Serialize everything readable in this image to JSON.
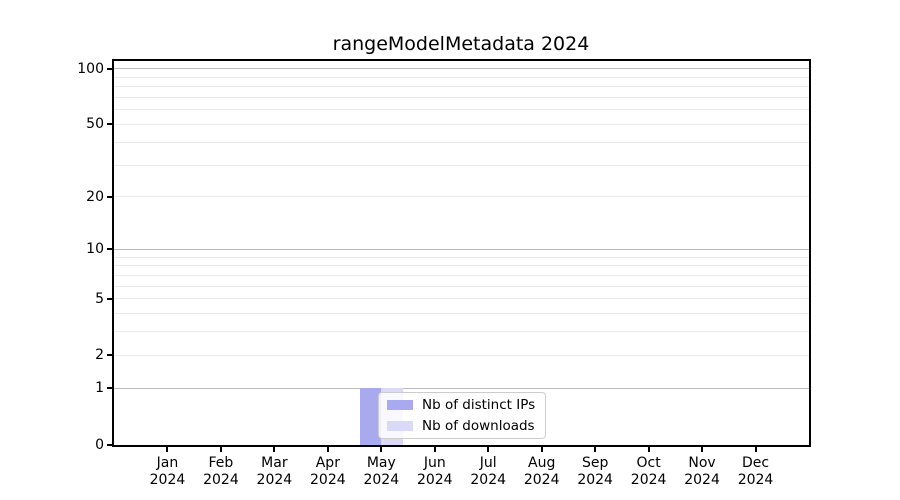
{
  "title": "rangeModelMetadata 2024",
  "colors": {
    "bar_distinct_ips": "#a9a9f0",
    "bar_downloads": "#dadaf8",
    "grid_major": "#bbbbbb",
    "grid_minor": "#e9e9e9",
    "axis": "#000000",
    "legend_border": "#cccccc"
  },
  "chart_data": {
    "type": "bar",
    "title": "rangeModelMetadata 2024",
    "categories": [
      {
        "month": "Jan",
        "year": "2024"
      },
      {
        "month": "Feb",
        "year": "2024"
      },
      {
        "month": "Mar",
        "year": "2024"
      },
      {
        "month": "Apr",
        "year": "2024"
      },
      {
        "month": "May",
        "year": "2024"
      },
      {
        "month": "Jun",
        "year": "2024"
      },
      {
        "month": "Jul",
        "year": "2024"
      },
      {
        "month": "Aug",
        "year": "2024"
      },
      {
        "month": "Sep",
        "year": "2024"
      },
      {
        "month": "Oct",
        "year": "2024"
      },
      {
        "month": "Nov",
        "year": "2024"
      },
      {
        "month": "Dec",
        "year": "2024"
      }
    ],
    "series": [
      {
        "name": "Nb of distinct IPs",
        "color": "#a9a9f0",
        "values": [
          0,
          0,
          0,
          0,
          1,
          0,
          0,
          0,
          0,
          0,
          0,
          0
        ]
      },
      {
        "name": "Nb of downloads",
        "color": "#dadaf8",
        "values": [
          0,
          0,
          0,
          0,
          1,
          0,
          0,
          0,
          0,
          0,
          0,
          0
        ]
      }
    ],
    "xlabel": "",
    "ylabel": "",
    "yscale": "log1p",
    "ylim": [
      0,
      110
    ],
    "y_ticks": [
      {
        "label": "100",
        "value": 100
      },
      {
        "label": "50",
        "value": 50
      },
      {
        "label": "20",
        "value": 20
      },
      {
        "label": "10",
        "value": 10
      },
      {
        "label": "5",
        "value": 5
      },
      {
        "label": "2",
        "value": 2
      },
      {
        "label": "1",
        "value": 1
      },
      {
        "label": "0",
        "value": 0
      }
    ],
    "y_major_gridlines": [
      1,
      10,
      100
    ],
    "y_minor_gridlines": [
      2,
      3,
      4,
      5,
      6,
      7,
      8,
      9,
      20,
      30,
      40,
      50,
      60,
      70,
      80,
      90
    ],
    "grid": "horizontal",
    "legend_position": "lower center"
  }
}
